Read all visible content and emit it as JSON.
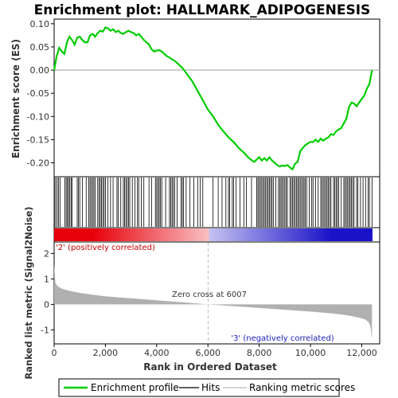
{
  "chart_data": {
    "type": "line",
    "title": "Enrichment plot: HALLMARK_ADIPOGENESIS",
    "es_panel": {
      "ylabel": "Enrichment score (ES)",
      "ylim": [
        -0.23,
        0.11
      ],
      "yticks": [
        0.1,
        0.05,
        0.0,
        -0.05,
        -0.1,
        -0.15,
        -0.2
      ],
      "ytick_labels": [
        "0.10",
        "0.05",
        "0.00",
        "-0.05",
        "-0.10",
        "-0.15",
        "-0.20"
      ],
      "series": [
        {
          "name": "Enrichment profile",
          "color": "#00cc00",
          "x": [
            0,
            100,
            200,
            300,
            400,
            500,
            600,
            700,
            800,
            900,
            1000,
            1100,
            1200,
            1300,
            1400,
            1500,
            1600,
            1700,
            1800,
            1900,
            2000,
            2100,
            2200,
            2300,
            2400,
            2500,
            2600,
            2700,
            2800,
            2900,
            3000,
            3100,
            3200,
            3300,
            3400,
            3500,
            3600,
            3700,
            3800,
            3900,
            4000,
            4100,
            4200,
            4300,
            4400,
            4500,
            4600,
            4700,
            4800,
            4900,
            5000,
            5200,
            5400,
            5600,
            5800,
            6000,
            6200,
            6400,
            6600,
            6800,
            7000,
            7200,
            7400,
            7600,
            7800,
            7900,
            8000,
            8100,
            8200,
            8300,
            8400,
            8500,
            8600,
            8700,
            8800,
            8900,
            9000,
            9100,
            9200,
            9300,
            9400,
            9500,
            9600,
            9700,
            9800,
            9900,
            10000,
            10100,
            10200,
            10300,
            10400,
            10500,
            10600,
            10700,
            10800,
            10900,
            11000,
            11100,
            11200,
            11300,
            11400,
            11500,
            11600,
            11700,
            11800,
            11900,
            12000,
            12100,
            12200,
            12300,
            12350,
            12400
          ],
          "y": [
            0.0,
            0.03,
            0.048,
            0.04,
            0.035,
            0.06,
            0.072,
            0.065,
            0.055,
            0.07,
            0.072,
            0.065,
            0.06,
            0.06,
            0.075,
            0.078,
            0.072,
            0.08,
            0.085,
            0.083,
            0.092,
            0.09,
            0.085,
            0.088,
            0.082,
            0.085,
            0.08,
            0.078,
            0.082,
            0.085,
            0.082,
            0.08,
            0.075,
            0.078,
            0.072,
            0.065,
            0.06,
            0.055,
            0.045,
            0.04,
            0.042,
            0.043,
            0.04,
            0.035,
            0.03,
            0.027,
            0.023,
            0.02,
            0.015,
            0.01,
            0.005,
            -0.01,
            -0.025,
            -0.045,
            -0.065,
            -0.085,
            -0.1,
            -0.118,
            -0.132,
            -0.145,
            -0.155,
            -0.168,
            -0.178,
            -0.19,
            -0.198,
            -0.193,
            -0.188,
            -0.195,
            -0.19,
            -0.195,
            -0.188,
            -0.195,
            -0.2,
            -0.205,
            -0.208,
            -0.206,
            -0.207,
            -0.205,
            -0.21,
            -0.214,
            -0.202,
            -0.198,
            -0.175,
            -0.168,
            -0.162,
            -0.158,
            -0.155,
            -0.155,
            -0.15,
            -0.155,
            -0.148,
            -0.152,
            -0.148,
            -0.145,
            -0.138,
            -0.14,
            -0.132,
            -0.128,
            -0.125,
            -0.115,
            -0.105,
            -0.08,
            -0.07,
            -0.072,
            -0.078,
            -0.07,
            -0.062,
            -0.055,
            -0.04,
            -0.03,
            -0.015,
            0.0
          ]
        }
      ]
    },
    "hits": {
      "name": "Hits",
      "positions": [
        10,
        60,
        120,
        170,
        230,
        420,
        470,
        520,
        560,
        610,
        660,
        700,
        900,
        950,
        1000,
        1100,
        1250,
        1350,
        1400,
        1450,
        1500,
        1550,
        1600,
        1700,
        1750,
        1800,
        1850,
        1900,
        1950,
        2000,
        2100,
        2200,
        2300,
        2450,
        2500,
        2600,
        2700,
        2750,
        2800,
        2850,
        2900,
        2950,
        3050,
        3150,
        3250,
        3300,
        3400,
        3500,
        3700,
        3800,
        3950,
        4000,
        4050,
        4100,
        4150,
        4200,
        4350,
        4500,
        4550,
        4600,
        4650,
        4700,
        4800,
        4950,
        5000,
        5050,
        5150,
        5300,
        5450,
        5600,
        5700,
        5800,
        6200,
        6400,
        6550,
        6700,
        6800,
        6850,
        6950,
        7000,
        7100,
        7250,
        7400,
        7500,
        7700,
        7900,
        7950,
        8000,
        8050,
        8100,
        8150,
        8200,
        8250,
        8300,
        8350,
        8400,
        8450,
        8500,
        8550,
        8650,
        8750,
        8800,
        8850,
        8900,
        8950,
        9000,
        9050,
        9100,
        9200,
        9250,
        9300,
        9350,
        9400,
        9450,
        9500,
        9550,
        9600,
        9650,
        9700,
        9750,
        9800,
        9850,
        9950,
        10050,
        10100,
        10200,
        10300,
        10400,
        10450,
        10500,
        10550,
        10600,
        10650,
        10700,
        10750,
        10800,
        10900,
        10950,
        11000,
        11050,
        11100,
        11200,
        11300,
        11350,
        11400,
        11450,
        11500,
        11550,
        11600,
        11650,
        11700,
        11800,
        11850,
        11950,
        12050,
        12150,
        12250,
        12300,
        12400
      ]
    },
    "ranked_metric": {
      "name": "Ranking metric scores",
      "ylabel": "Ranked list metric (Signal2Noise)",
      "ylim": [
        -1.55,
        2.45
      ],
      "yticks": [
        2,
        1,
        0,
        -1
      ],
      "ytick_labels": [
        "2",
        "1",
        "0",
        "-1"
      ],
      "x": [
        0,
        50,
        150,
        300,
        600,
        1000,
        1500,
        2000,
        3000,
        4000,
        5000,
        6007,
        7000,
        8000,
        9000,
        10000,
        11000,
        11500,
        11800,
        12000,
        12150,
        12250,
        12320,
        12360,
        12400
      ],
      "y": [
        1.6,
        0.85,
        0.7,
        0.62,
        0.53,
        0.45,
        0.38,
        0.32,
        0.24,
        0.16,
        0.08,
        0.0,
        -0.07,
        -0.14,
        -0.21,
        -0.28,
        -0.37,
        -0.44,
        -0.5,
        -0.55,
        -0.6,
        -0.68,
        -0.8,
        -1.0,
        -1.38
      ],
      "zero_cross_label": "Zero cross at 6007",
      "zero_cross_x": 6007,
      "pos_label": "'2' (positively correlated)",
      "neg_label": "'3' (negatively correlated)"
    },
    "x_axis": {
      "label": "Rank in Ordered Dataset",
      "xlim": [
        0,
        12700
      ],
      "ticks": [
        0,
        2000,
        4000,
        6000,
        8000,
        10000,
        12000
      ],
      "tick_labels": [
        "0",
        "2,000",
        "4,000",
        "6,000",
        "8,000",
        "10,000",
        "12,000"
      ]
    },
    "legend": {
      "placement": "bottom",
      "entries": [
        "Enrichment profile",
        "Hits",
        "Ranking metric scores"
      ]
    },
    "colors": {
      "profile": "#00cc00",
      "positive": "#e8000a",
      "negative": "#1a12c8",
      "metric_fill": "#b0b0b0",
      "zero_line": "#bbbbbb",
      "pos_label": "#cc0000",
      "neg_label": "#1a1ab8"
    }
  }
}
